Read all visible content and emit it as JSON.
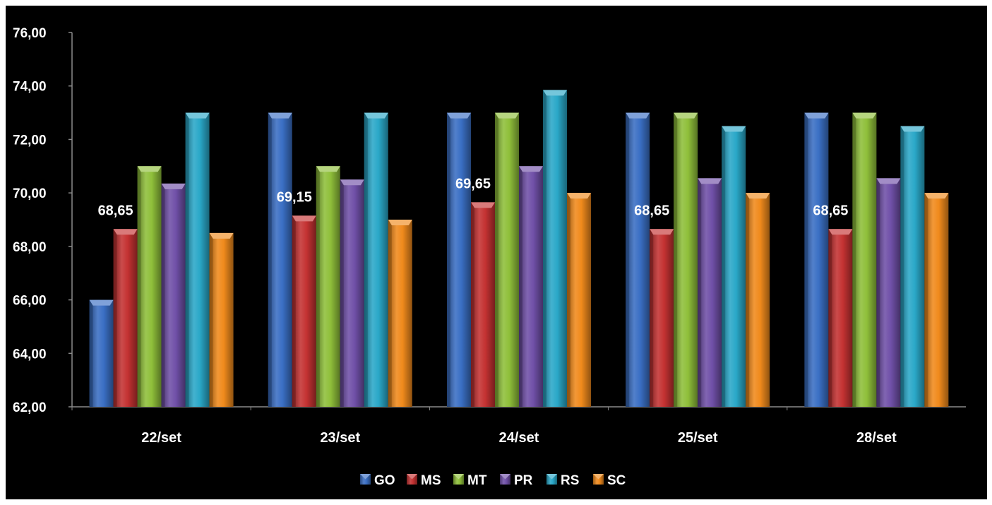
{
  "chart_data": {
    "type": "bar",
    "title": "",
    "xlabel": "",
    "ylabel": "",
    "ylim": [
      62,
      76
    ],
    "ytick_step": 2,
    "ytick_labels": [
      "62,00",
      "64,00",
      "66,00",
      "68,00",
      "70,00",
      "72,00",
      "74,00",
      "76,00"
    ],
    "grid": false,
    "legend_position": "bottom",
    "categories": [
      "22/set",
      "23/set",
      "24/set",
      "25/set",
      "28/set"
    ],
    "series": [
      {
        "name": "GO",
        "color": "#3a6fc4",
        "values": [
          66.0,
          73.0,
          73.0,
          73.0,
          73.0
        ]
      },
      {
        "name": "MS",
        "color": "#c43232",
        "values": [
          68.65,
          69.15,
          69.65,
          68.65,
          68.65
        ]
      },
      {
        "name": "MT",
        "color": "#8fbf3a",
        "values": [
          71.0,
          71.0,
          73.0,
          73.0,
          73.0
        ]
      },
      {
        "name": "PR",
        "color": "#7050a8",
        "values": [
          70.35,
          70.5,
          71.0,
          70.55,
          70.55
        ]
      },
      {
        "name": "RS",
        "color": "#2aa8c8",
        "values": [
          73.0,
          73.0,
          73.85,
          72.5,
          72.5
        ]
      },
      {
        "name": "SC",
        "color": "#f08a1c",
        "values": [
          68.5,
          69.0,
          70.0,
          70.0,
          70.0
        ]
      }
    ],
    "data_labels": [
      {
        "series": "MS",
        "category": "22/set",
        "text": "68,65"
      },
      {
        "series": "MS",
        "category": "23/set",
        "text": "69,15"
      },
      {
        "series": "MS",
        "category": "24/set",
        "text": "69,65"
      },
      {
        "series": "MS",
        "category": "25/set",
        "text": "68,65"
      },
      {
        "series": "MS",
        "category": "28/set",
        "text": "68,65"
      }
    ]
  }
}
